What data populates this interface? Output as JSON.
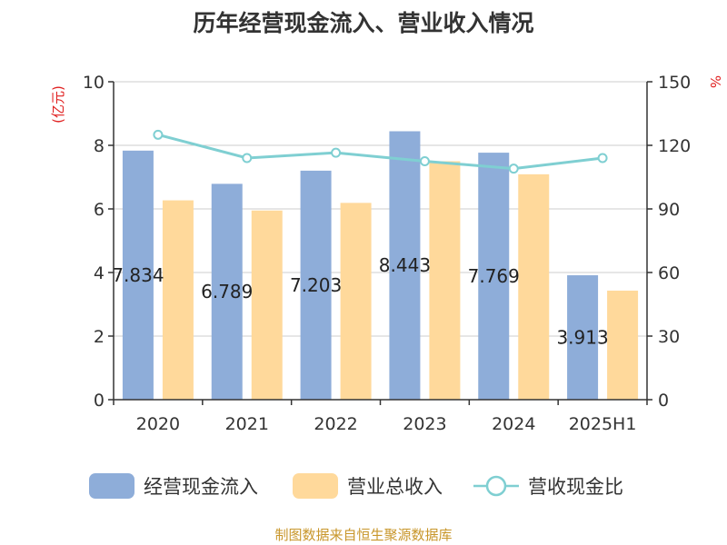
{
  "chart_data": {
    "type": "bar",
    "title": "历年经营现金流入、营业收入情况",
    "categories": [
      "2020",
      "2021",
      "2022",
      "2023",
      "2024",
      "2025H1"
    ],
    "series": [
      {
        "name": "经营现金流入",
        "type": "bar",
        "axis": "left",
        "color": "#8eadd9",
        "values": [
          7.834,
          6.789,
          7.203,
          8.443,
          7.769,
          3.913
        ]
      },
      {
        "name": "营业总收入",
        "type": "bar",
        "axis": "left",
        "color": "#ffd99b",
        "values": [
          6.27,
          5.95,
          6.19,
          7.5,
          7.09,
          3.43
        ]
      },
      {
        "name": "营收现金比",
        "type": "line",
        "axis": "right",
        "color": "#7fcfd2",
        "values": [
          125,
          114,
          116.5,
          112.5,
          109,
          114
        ]
      }
    ],
    "data_labels": [
      "7.834",
      "6.789",
      "7.203",
      "8.443",
      "7.769",
      "3.913"
    ],
    "y_left": {
      "unit": "(亿元)",
      "min": 0,
      "max": 10,
      "ticks": [
        "0",
        "2",
        "4",
        "6",
        "8",
        "10"
      ]
    },
    "y_right": {
      "unit": "%",
      "min": 0,
      "max": 150,
      "ticks": [
        "0",
        "30",
        "60",
        "90",
        "120",
        "150"
      ]
    },
    "grid": true,
    "legend_position": "bottom"
  },
  "footer": "制图数据来自恒生聚源数据库"
}
